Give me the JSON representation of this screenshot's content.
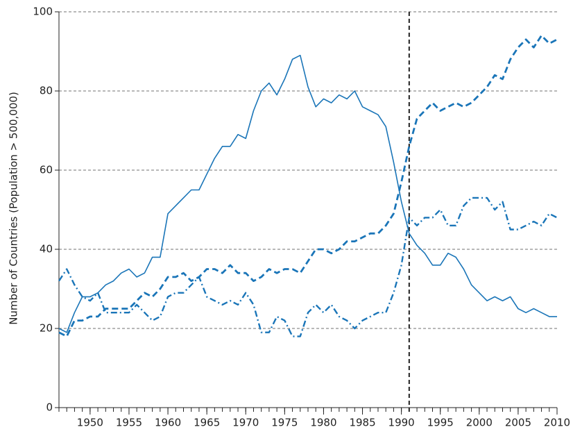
{
  "chart_data": {
    "type": "line",
    "y_label": "Number of Countries (Population > 500,000)",
    "x": [
      1946,
      1947,
      1948,
      1949,
      1950,
      1951,
      1952,
      1953,
      1954,
      1955,
      1956,
      1957,
      1958,
      1959,
      1960,
      1961,
      1962,
      1963,
      1964,
      1965,
      1966,
      1967,
      1968,
      1969,
      1970,
      1971,
      1972,
      1973,
      1974,
      1975,
      1976,
      1977,
      1978,
      1979,
      1980,
      1981,
      1982,
      1983,
      1984,
      1985,
      1986,
      1987,
      1988,
      1989,
      1990,
      1991,
      1992,
      1993,
      1994,
      1995,
      1996,
      1997,
      1998,
      1999,
      2000,
      2001,
      2002,
      2003,
      2004,
      2005,
      2006,
      2007,
      2008,
      2009,
      2010
    ],
    "series": [
      {
        "color": "#1a75b8",
        "dash": "solid",
        "values": [
          20,
          19,
          24,
          28,
          28,
          29,
          31,
          32,
          34,
          35,
          33,
          34,
          38,
          38,
          49,
          51,
          53,
          55,
          55,
          59,
          63,
          66,
          66,
          69,
          68,
          75,
          80,
          82,
          79,
          83,
          88,
          89,
          81,
          76,
          78,
          77,
          79,
          78,
          80,
          76,
          75,
          74,
          71,
          62,
          52,
          44,
          41,
          39,
          36,
          36,
          39,
          38,
          35,
          31,
          29,
          27,
          28,
          27,
          28,
          25,
          24,
          25,
          24,
          23,
          23
        ]
      },
      {
        "color": "#1a75b8",
        "dash": "dashed",
        "values": [
          19,
          18,
          22,
          22,
          23,
          23,
          25,
          25,
          25,
          25,
          27,
          29,
          28,
          30,
          33,
          33,
          34,
          32,
          33,
          35,
          35,
          34,
          36,
          34,
          34,
          32,
          33,
          35,
          34,
          35,
          35,
          34,
          37,
          40,
          40,
          39,
          40,
          42,
          42,
          43,
          44,
          44,
          46,
          49,
          57,
          66,
          73,
          75,
          77,
          75,
          76,
          77,
          76,
          77,
          79,
          81,
          84,
          83,
          88,
          91,
          93,
          91,
          94,
          92,
          93
        ]
      },
      {
        "color": "#1a75b8",
        "dash": "dashdot",
        "values": [
          32,
          35,
          31,
          28,
          27,
          29,
          24,
          24,
          24,
          24,
          26,
          24,
          22,
          23,
          28,
          29,
          29,
          31,
          33,
          28,
          27,
          26,
          27,
          26,
          29,
          26,
          19,
          19,
          23,
          22,
          18,
          18,
          24,
          26,
          24,
          26,
          23,
          22,
          20,
          22,
          23,
          24,
          24,
          29,
          36,
          48,
          46,
          48,
          48,
          50,
          46,
          46,
          51,
          53,
          53,
          53,
          50,
          52,
          45,
          45,
          46,
          47,
          46,
          49,
          48
        ]
      }
    ],
    "xlim": [
      1946,
      2010
    ],
    "xticks": [
      1950,
      1955,
      1960,
      1965,
      1970,
      1975,
      1980,
      1985,
      1990,
      1995,
      2000,
      2005,
      2010
    ],
    "ylim": [
      0,
      100
    ],
    "yticks": [
      0,
      20,
      40,
      60,
      80,
      100
    ],
    "grid": true,
    "vline": 1991
  }
}
